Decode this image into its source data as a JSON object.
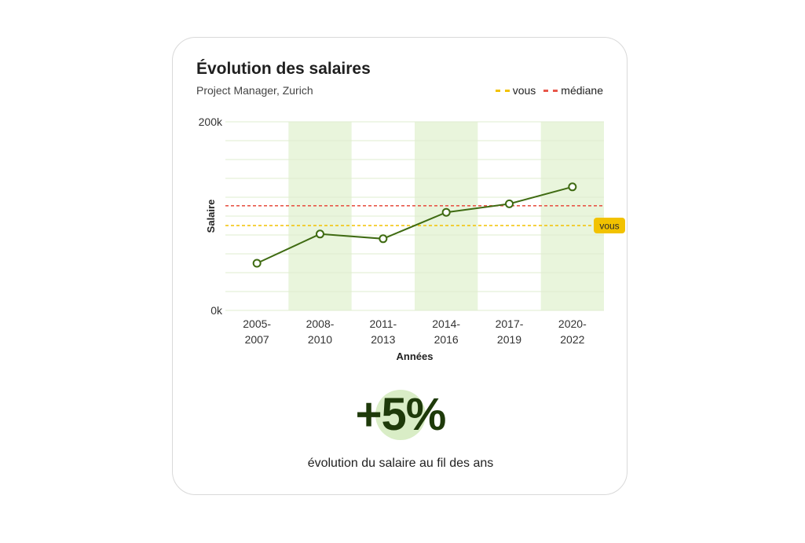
{
  "card": {
    "title": "Évolution des salaires",
    "subtitle": "Project Manager, Zurich",
    "legend": {
      "you_label": "vous",
      "median_label": "médiane"
    },
    "big_number": "+5%",
    "caption": "évolution du salaire au fil des ans"
  },
  "colors": {
    "line": "#3f6b12",
    "you": "#f2c200",
    "median": "#e8574a",
    "band": "#e9f5dc",
    "highlight": "#d9edc6"
  },
  "chart_data": {
    "type": "line",
    "categories": [
      "2005-2007",
      "2008-2010",
      "2011-2013",
      "2014-2016",
      "2017-2019",
      "2020-2022"
    ],
    "category_lines": [
      [
        "2005-",
        "2007"
      ],
      [
        "2008-",
        "2010"
      ],
      [
        "2011-",
        "2013"
      ],
      [
        "2014-",
        "2016"
      ],
      [
        "2017-",
        "2019"
      ],
      [
        "2020-",
        "2022"
      ]
    ],
    "series": [
      {
        "values": [
          50000,
          81000,
          76000,
          104000,
          113000,
          131000
        ]
      }
    ],
    "reference_lines": [
      {
        "name": "médiane",
        "value": 111000,
        "style": "dashed"
      },
      {
        "name": "vous",
        "value": 90000,
        "style": "dashed",
        "tag": "vous"
      }
    ],
    "xlabel": "Années",
    "ylabel": "Salaire",
    "ylim": [
      0,
      200000
    ],
    "y_tick_labels": [
      {
        "value": 0,
        "label": "0k"
      },
      {
        "value": 200000,
        "label": "200k"
      }
    ],
    "grid": true,
    "grid_step": 20000,
    "alternate_bands": true,
    "legend_position": "top-right"
  }
}
